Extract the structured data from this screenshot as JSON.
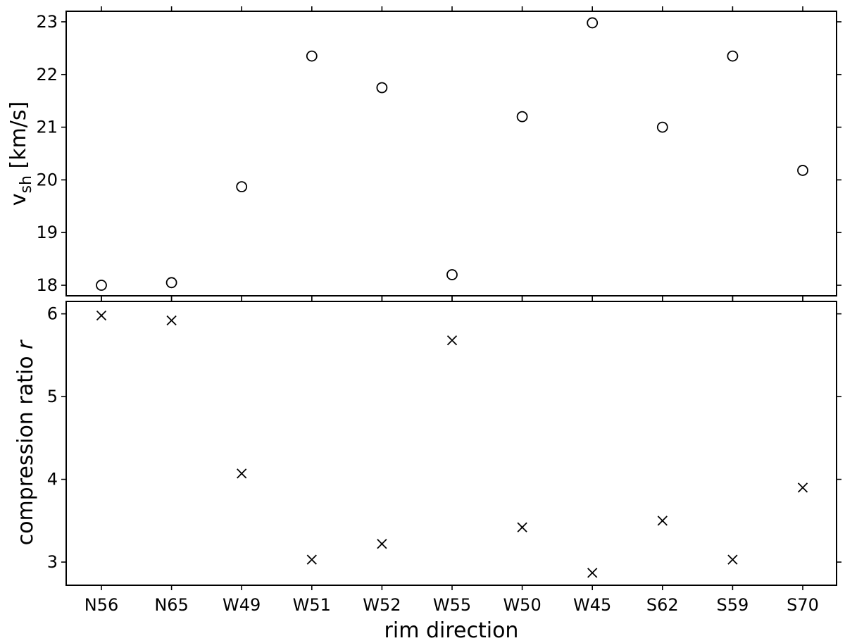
{
  "chart_data": [
    {
      "type": "scatter",
      "marker": "circle-open",
      "xlabel": "",
      "ylabel": "v",
      "ylabel_subscript": "sh",
      "ylabel_unit": " [km/s]",
      "categories": [
        "N56",
        "N65",
        "W49",
        "W51",
        "W52",
        "W55",
        "W50",
        "W45",
        "S62",
        "S59",
        "S70"
      ],
      "ylim": [
        17.8,
        23.2
      ],
      "yticks": [
        18,
        19,
        20,
        21,
        22,
        23
      ],
      "values": [
        18.0,
        18.05,
        19.87,
        22.35,
        21.75,
        18.2,
        21.2,
        22.98,
        21.0,
        22.35,
        20.18
      ],
      "color": "#000000",
      "grid": false
    },
    {
      "type": "scatter",
      "marker": "x",
      "xlabel": "rim direction",
      "ylabel": "compression ratio ",
      "ylabel_italic": "r",
      "categories": [
        "N56",
        "N65",
        "W49",
        "W51",
        "W52",
        "W55",
        "W50",
        "W45",
        "S62",
        "S59",
        "S70"
      ],
      "ylim": [
        2.72,
        6.15
      ],
      "yticks": [
        3,
        4,
        5,
        6
      ],
      "values": [
        5.98,
        5.92,
        4.07,
        3.03,
        3.22,
        5.68,
        3.42,
        2.87,
        3.5,
        3.03,
        3.9
      ],
      "color": "#000000",
      "grid": false
    }
  ]
}
